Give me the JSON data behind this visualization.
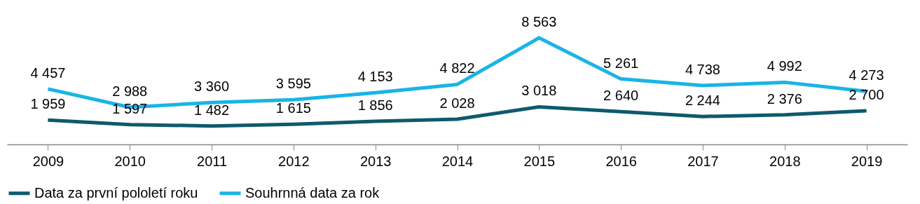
{
  "chart_data": {
    "type": "line",
    "categories": [
      "2009",
      "2010",
      "2011",
      "2012",
      "2013",
      "2014",
      "2015",
      "2016",
      "2017",
      "2018",
      "2019"
    ],
    "series": [
      {
        "name": "Data za první pololetí roku",
        "color": "#0e5a6d",
        "values": [
          1959,
          1597,
          1482,
          1615,
          1856,
          2028,
          3018,
          2640,
          2244,
          2376,
          2700
        ],
        "value_labels": [
          "1 959",
          "1 597",
          "1 482",
          "1 615",
          "1 856",
          "2 028",
          "3 018",
          "2 640",
          "2 244",
          "2 376",
          "2 700"
        ]
      },
      {
        "name": "Souhrnná data za rok",
        "color": "#1ab4e6",
        "values": [
          4457,
          2988,
          3360,
          3595,
          4153,
          4822,
          8563,
          5261,
          4738,
          4992,
          4273
        ],
        "value_labels": [
          "4 457",
          "2 988",
          "3 360",
          "3 595",
          "4 153",
          "4 822",
          "8 563",
          "5 261",
          "4 738",
          "4 992",
          "4 273"
        ]
      }
    ],
    "tick_labels": "x",
    "grid": false,
    "legend": "bottom",
    "marker": "none",
    "line_style": "solid"
  }
}
